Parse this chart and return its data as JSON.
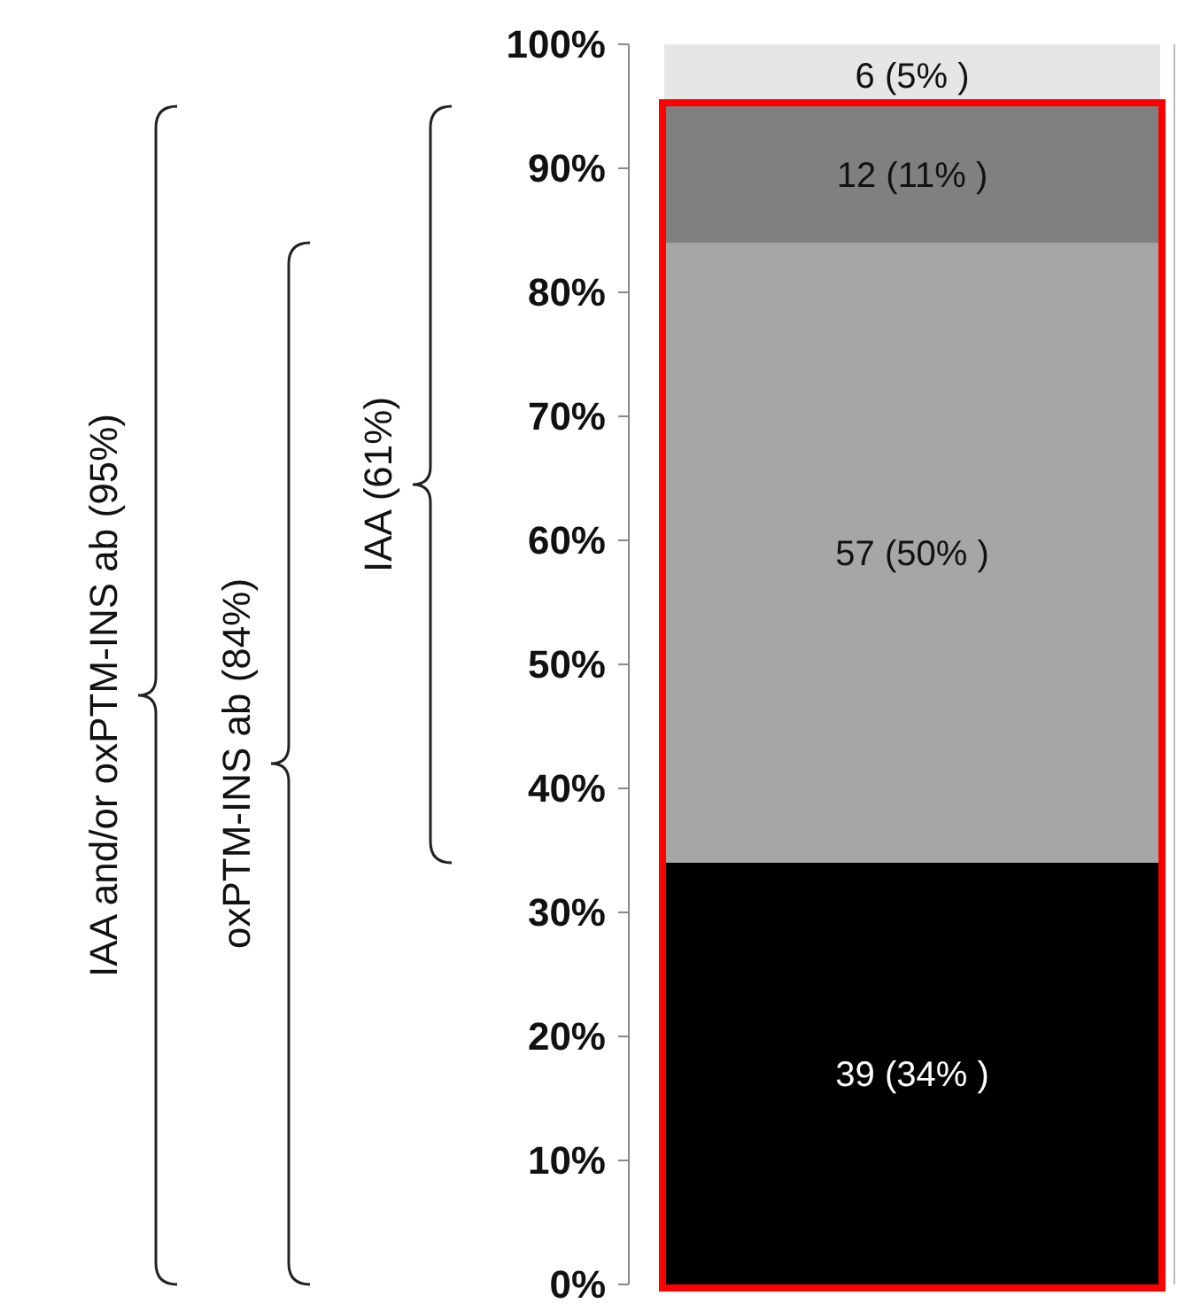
{
  "chart_data": {
    "type": "bar",
    "stacked": true,
    "categories": [
      null
    ],
    "series": [
      {
        "color": "#000000",
        "values": [
          34
        ],
        "value_labels": [
          "39 (34% )"
        ]
      },
      {
        "color": "#a6a6a6",
        "values": [
          50
        ],
        "value_labels": [
          "57 (50% )"
        ]
      },
      {
        "color": "#808080",
        "values": [
          11
        ],
        "value_labels": [
          "12 (11% )"
        ]
      },
      {
        "color": "#e6e6e6",
        "values": [
          5
        ],
        "value_labels": [
          "6 (5% )"
        ]
      }
    ],
    "ylim": [
      0,
      100
    ],
    "yticks": [
      {
        "value": 0,
        "label": "0%"
      },
      {
        "value": 10,
        "label": "10%"
      },
      {
        "value": 20,
        "label": "20%"
      },
      {
        "value": 30,
        "label": "30%"
      },
      {
        "value": 40,
        "label": "40%"
      },
      {
        "value": 50,
        "label": "50%"
      },
      {
        "value": 60,
        "label": "60%"
      },
      {
        "value": 70,
        "label": "70%"
      },
      {
        "value": 80,
        "label": "80%"
      },
      {
        "value": 90,
        "label": "90%"
      },
      {
        "value": 100,
        "label": "100%"
      }
    ],
    "annotations": [
      "IAA and/or oxPTM-INS ab (95%)",
      "oxPTM-INS ab (84%)",
      "IAA (61%)"
    ],
    "grid": false
  }
}
